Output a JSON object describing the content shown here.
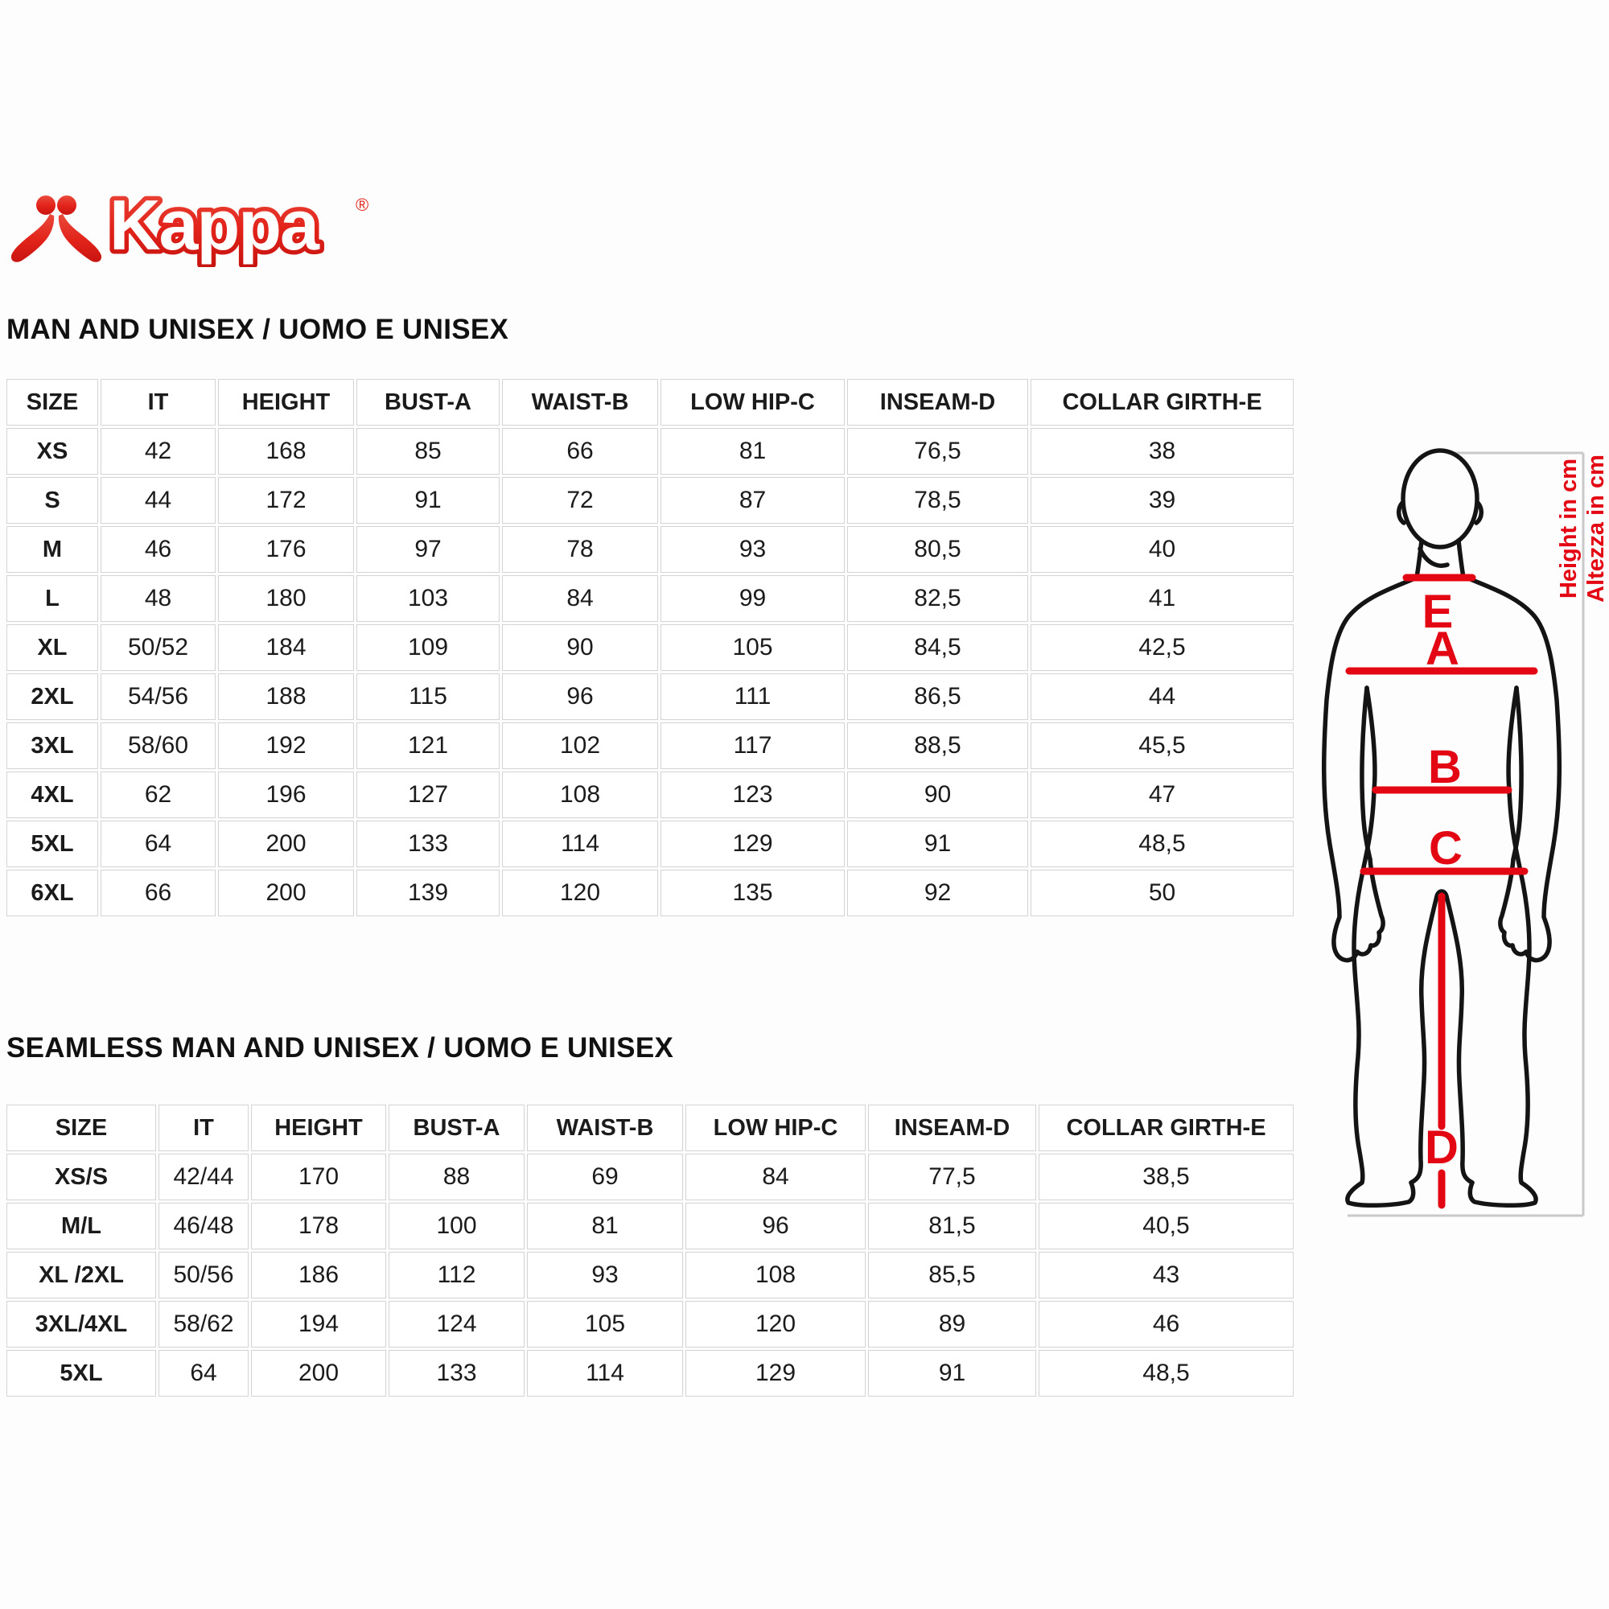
{
  "logo": {
    "brand": "Kappa",
    "registered_mark": "®",
    "brand_red": "#e2231a"
  },
  "sections": [
    {
      "title": "MAN AND UNISEX / UOMO E UNISEX",
      "table": {
        "headers": [
          "SIZE",
          "IT",
          "HEIGHT",
          "BUST-A",
          "WAIST-B",
          "LOW HIP-C",
          "INSEAM-D",
          "COLLAR GIRTH-E"
        ],
        "rows": [
          [
            "XS",
            "42",
            "168",
            "85",
            "66",
            "81",
            "76,5",
            "38"
          ],
          [
            "S",
            "44",
            "172",
            "91",
            "72",
            "87",
            "78,5",
            "39"
          ],
          [
            "M",
            "46",
            "176",
            "97",
            "78",
            "93",
            "80,5",
            "40"
          ],
          [
            "L",
            "48",
            "180",
            "103",
            "84",
            "99",
            "82,5",
            "41"
          ],
          [
            "XL",
            "50/52",
            "184",
            "109",
            "90",
            "105",
            "84,5",
            "42,5"
          ],
          [
            "2XL",
            "54/56",
            "188",
            "115",
            "96",
            "111",
            "86,5",
            "44"
          ],
          [
            "3XL",
            "58/60",
            "192",
            "121",
            "102",
            "117",
            "88,5",
            "45,5"
          ],
          [
            "4XL",
            "62",
            "196",
            "127",
            "108",
            "123",
            "90",
            "47"
          ],
          [
            "5XL",
            "64",
            "200",
            "133",
            "114",
            "129",
            "91",
            "48,5"
          ],
          [
            "6XL",
            "66",
            "200",
            "139",
            "120",
            "135",
            "92",
            "50"
          ]
        ]
      }
    },
    {
      "title": "SEAMLESS MAN AND UNISEX / UOMO E UNISEX",
      "table": {
        "headers": [
          "SIZE",
          "IT",
          "HEIGHT",
          "BUST-A",
          "WAIST-B",
          "LOW HIP-C",
          "INSEAM-D",
          "COLLAR GIRTH-E"
        ],
        "rows": [
          [
            "XS/S",
            "42/44",
            "170",
            "88",
            "69",
            "84",
            "77,5",
            "38,5"
          ],
          [
            "M/L",
            "46/48",
            "178",
            "100",
            "81",
            "96",
            "81,5",
            "40,5"
          ],
          [
            "XL /2XL",
            "50/56",
            "186",
            "112",
            "93",
            "108",
            "85,5",
            "43"
          ],
          [
            "3XL/4XL",
            "58/62",
            "194",
            "124",
            "105",
            "120",
            "89",
            "46"
          ],
          [
            "5XL",
            "64",
            "200",
            "133",
            "114",
            "129",
            "91",
            "48,5"
          ]
        ]
      }
    }
  ],
  "figure": {
    "labels": {
      "collar": "E",
      "bust": "A",
      "waist": "B",
      "low_hip": "C",
      "inseam": "D"
    },
    "height_note_en": "Height in cm",
    "height_note_it": "Altezza in cm",
    "line_color": "#e30613",
    "outline_color": "#141414",
    "bracket_color": "#c9c9c9"
  }
}
